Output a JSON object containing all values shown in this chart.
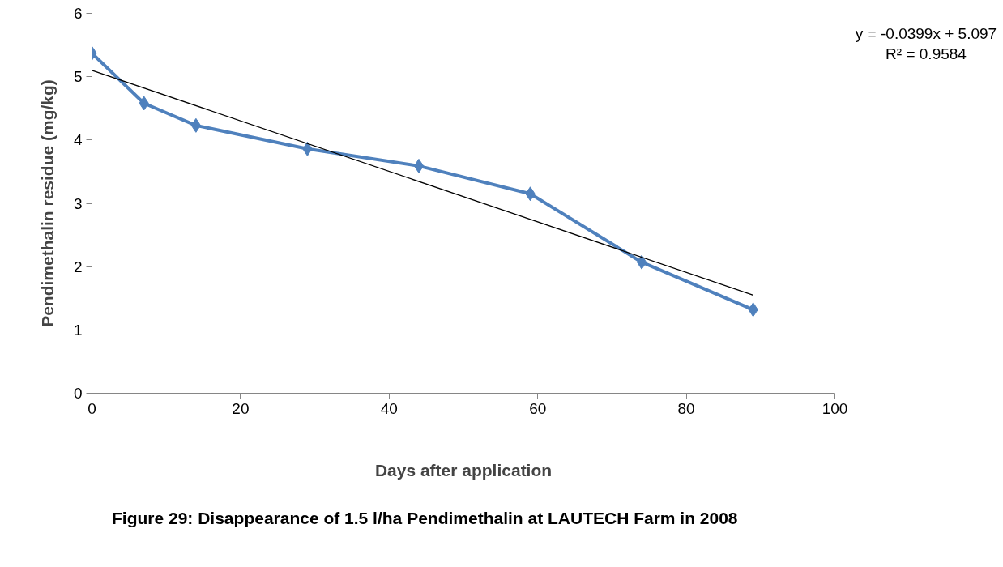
{
  "chart_data": {
    "type": "line",
    "xlabel": "Days after application",
    "ylabel": "Pendimethalin residue (mg/kg)",
    "x": [
      0,
      7,
      14,
      29,
      44,
      59,
      74,
      89
    ],
    "series": [
      {
        "color": "#4f81bd",
        "values": [
          5.37,
          4.58,
          4.23,
          3.86,
          3.59,
          3.15,
          2.07,
          1.32
        ],
        "marker": "diamond"
      },
      {
        "type": "line",
        "color": "#000000",
        "x": [
          0,
          89
        ],
        "values": [
          5.1,
          1.55
        ],
        "marker": "none"
      }
    ],
    "xlim": [
      0,
      100
    ],
    "xticks": [
      0,
      20,
      40,
      60,
      80,
      100
    ],
    "ylim": [
      0,
      6
    ],
    "yticks": [
      0,
      1,
      2,
      3,
      4,
      5,
      6
    ],
    "grid": false,
    "annotations": [
      "y = -0.0399x + 5.097",
      "R² = 0.9584",
      "Figure 29: Disappearance of 1.5 l/ha Pendimethalin  at LAUTECH Farm in 2008"
    ]
  }
}
